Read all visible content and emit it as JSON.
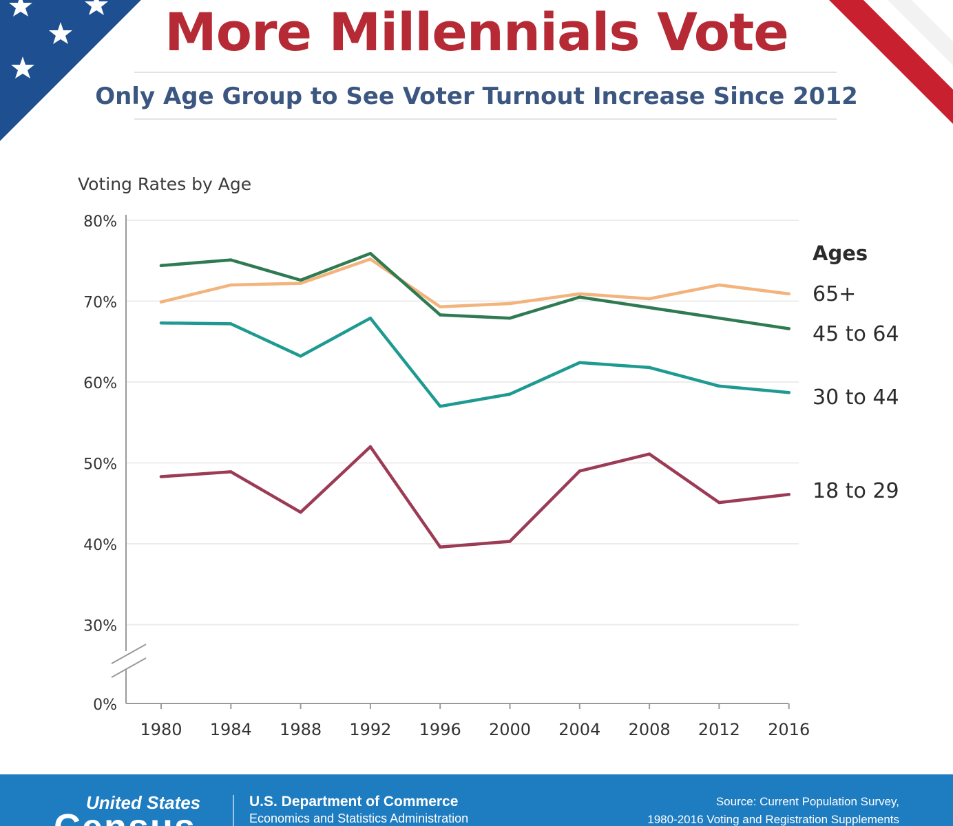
{
  "header": {
    "title": "More Millennials Vote",
    "subtitle": "Only Age Group to See Voter Turnout Increase Since 2012"
  },
  "colors": {
    "title": "#b52a34",
    "subtitle": "#3b5680",
    "flag_blue": "#1d4f91",
    "flag_red": "#c8202f",
    "footer": "#1e7cc1"
  },
  "chart_data": {
    "type": "line",
    "title": "Voting Rates by Age",
    "xlabel": "",
    "ylabel": "",
    "legend_title": "Ages",
    "legend_placement": "right",
    "x": [
      "1980",
      "1984",
      "1988",
      "1992",
      "1996",
      "2000",
      "2004",
      "2008",
      "2012",
      "2016"
    ],
    "yticks": [
      0,
      30,
      40,
      50,
      60,
      70,
      80
    ],
    "ytick_labels": [
      "0%",
      "30%",
      "40%",
      "50%",
      "60%",
      "70%",
      "80%"
    ],
    "ylim": [
      30,
      80
    ],
    "axis_break": true,
    "grid": true,
    "series": [
      {
        "name": "65+",
        "color": "#f2b47c",
        "values": [
          69.9,
          72.0,
          72.2,
          75.2,
          69.3,
          69.7,
          70.9,
          70.3,
          72.0,
          70.9
        ]
      },
      {
        "name": "45 to 64",
        "color": "#2f7a52",
        "values": [
          74.4,
          75.1,
          72.6,
          75.9,
          68.3,
          67.9,
          70.5,
          69.2,
          67.9,
          66.6
        ]
      },
      {
        "name": "30 to 44",
        "color": "#1e9a91",
        "values": [
          67.3,
          67.2,
          63.2,
          67.9,
          57.0,
          58.5,
          62.4,
          61.8,
          59.5,
          58.7
        ]
      },
      {
        "name": "18 to 29",
        "color": "#9b3b55",
        "values": [
          48.3,
          48.9,
          43.9,
          52.0,
          39.6,
          40.3,
          49.0,
          51.1,
          45.1,
          46.1
        ]
      }
    ]
  },
  "footer": {
    "brand_line1": "United States",
    "brand_line2": "Census",
    "dept_line1": "U.S. Department of Commerce",
    "dept_line2": "Economics and Statistics Administration",
    "source_line1": "Source: Current Population Survey,",
    "source_line2": "1980-2016 Voting and Registration Supplements"
  }
}
